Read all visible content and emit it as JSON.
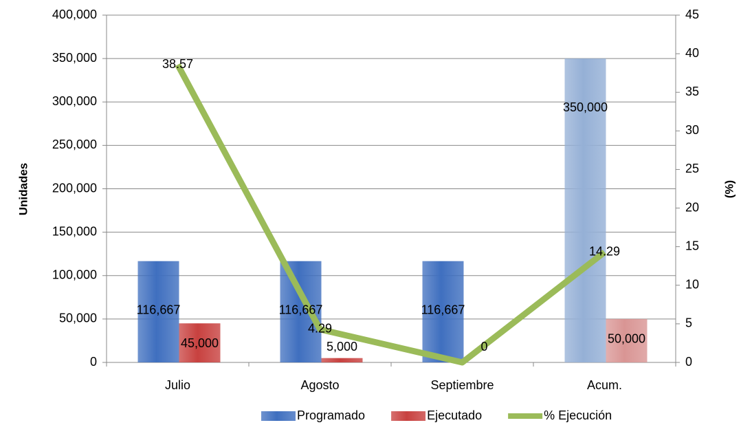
{
  "chart_data": {
    "type": "bar",
    "categories": [
      "Julio",
      "Agosto",
      "Septiembre",
      "Acum."
    ],
    "series": [
      {
        "name": "Programado",
        "color": "#3f6fbf",
        "colors": [
          "#3f6fbf",
          "#3f6fbf",
          "#3f6fbf",
          "#95b0d6"
        ],
        "values": [
          116667,
          116667,
          116667,
          350000
        ],
        "value_labels": [
          "116,667",
          "116,667",
          "116,667",
          "350,000"
        ]
      },
      {
        "name": "Ejecutado",
        "color": "#c8413f",
        "colors": [
          "#c8413f",
          "#c8413f",
          "#c8413f",
          "#d99594"
        ],
        "values": [
          45000,
          5000,
          0,
          50000
        ],
        "value_labels": [
          "45,000",
          "5,000",
          "0",
          "50,000"
        ]
      },
      {
        "name": "% Ejecución",
        "type": "line",
        "axis": "y2",
        "color": "#9bbb59",
        "values": [
          38.57,
          4.29,
          0,
          14.29
        ],
        "value_labels": [
          "38.57",
          "4.29",
          null,
          "14.29"
        ]
      }
    ],
    "y_label": "Unidades",
    "y2_label": "(%)",
    "ylim": [
      0,
      400000
    ],
    "yticks": [
      {
        "value": 0,
        "label": "0"
      },
      {
        "value": 50000,
        "label": "50,000"
      },
      {
        "value": 100000,
        "label": "100,000"
      },
      {
        "value": 150000,
        "label": "150,000"
      },
      {
        "value": 200000,
        "label": "200,000"
      },
      {
        "value": 250000,
        "label": "250,000"
      },
      {
        "value": 300000,
        "label": "300,000"
      },
      {
        "value": 350000,
        "label": "350,000"
      },
      {
        "value": 400000,
        "label": "400,000"
      }
    ],
    "y2lim": [
      0,
      45
    ],
    "y2ticks": [
      0,
      5,
      10,
      15,
      20,
      25,
      30,
      35,
      40,
      45
    ],
    "grid": true,
    "legend": "bottom"
  }
}
